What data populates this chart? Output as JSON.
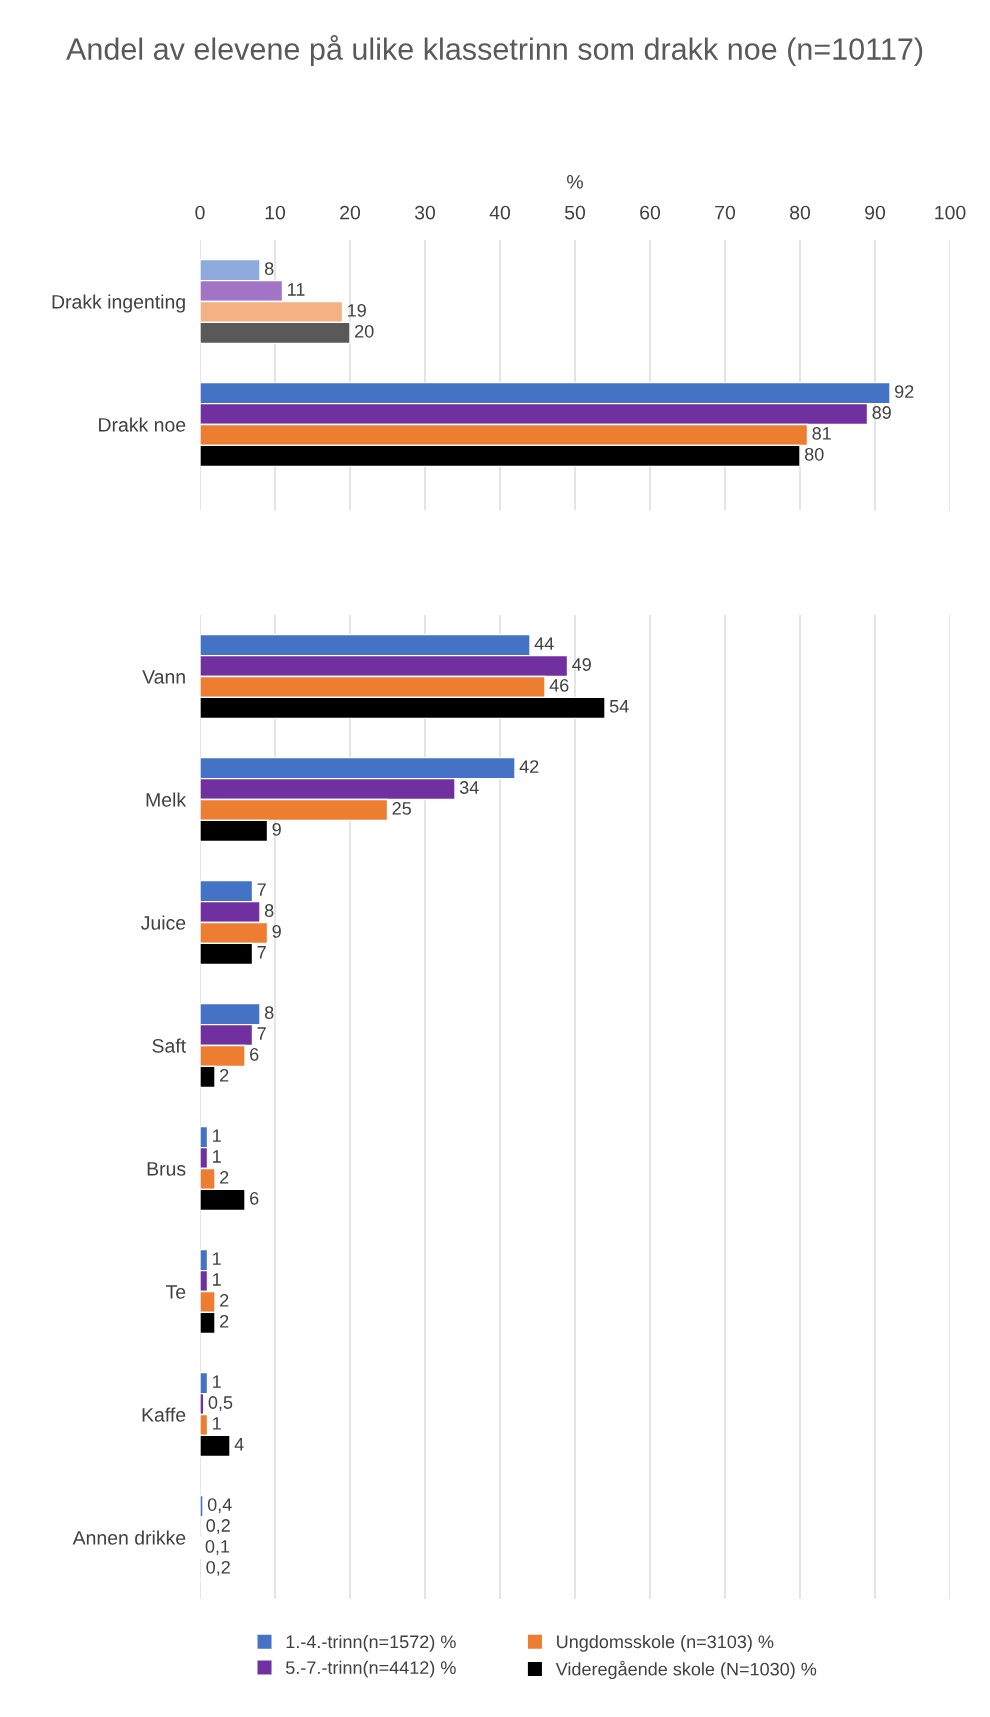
{
  "chart_data": [
    {
      "type": "bar",
      "orientation": "horizontal",
      "title": "Andel av elevene på ulike klassetrinn som drakk noe (n=10117)",
      "xlabel": "%",
      "categories": [
        "Drakk ingenting",
        "Drakk noe"
      ],
      "xlim": [
        0,
        100
      ],
      "xticks": [
        0,
        10,
        20,
        30,
        40,
        50,
        60,
        70,
        80,
        90,
        100
      ],
      "grid": "x",
      "series": [
        {
          "colors": [
            "#8faadc",
            "#4472c4"
          ],
          "values": [
            8,
            92
          ],
          "value_labels": [
            "8",
            "92"
          ]
        },
        {
          "colors": [
            "#a274c6",
            "#7030a0"
          ],
          "values": [
            11,
            89
          ],
          "value_labels": [
            "11",
            "89"
          ]
        },
        {
          "colors": [
            "#f4b183",
            "#ed7d31"
          ],
          "values": [
            19,
            81
          ],
          "value_labels": [
            "19",
            "81"
          ]
        },
        {
          "colors": [
            "#595959",
            "#000000"
          ],
          "values": [
            20,
            80
          ],
          "value_labels": [
            "20",
            "80"
          ]
        }
      ]
    },
    {
      "type": "bar",
      "orientation": "horizontal",
      "categories": [
        "Vann",
        "Melk",
        "Juice",
        "Saft",
        "Brus",
        "Te",
        "Kaffe",
        "Annen drikke"
      ],
      "xlim": [
        0,
        100
      ],
      "xticks": [
        0,
        10,
        20,
        30,
        40,
        50,
        60,
        70,
        80,
        90,
        100
      ],
      "tick_labels": "y",
      "grid": "x",
      "legend": "bottom",
      "series": [
        {
          "name": "1.-4.-trinn(n=1572) %",
          "color": "#4472c4",
          "values": [
            44,
            42,
            7,
            8,
            1,
            1,
            1,
            0.4
          ],
          "value_labels": [
            "44",
            "42",
            "7",
            "8",
            "1",
            "1",
            "1",
            "0,4"
          ]
        },
        {
          "name": "5.-7.-trinn(n=4412) %",
          "color": "#7030a0",
          "values": [
            49,
            34,
            8,
            7,
            1,
            1,
            0.5,
            0.2
          ],
          "value_labels": [
            "49",
            "34",
            "8",
            "7",
            "1",
            "1",
            "0,5",
            "0,2"
          ]
        },
        {
          "name": "Ungdomsskole (n=3103) %",
          "color": "#ed7d31",
          "values": [
            46,
            25,
            9,
            6,
            2,
            2,
            1,
            0.1
          ],
          "value_labels": [
            "46",
            "25",
            "9",
            "6",
            "2",
            "2",
            "1",
            "0,1"
          ]
        },
        {
          "name": "Videregående skole (N=1030) %",
          "color": "#000000",
          "values": [
            54,
            9,
            7,
            2,
            6,
            2,
            4,
            0.2
          ],
          "value_labels": [
            "54",
            "9",
            "7",
            "2",
            "6",
            "2",
            "4",
            "0,2"
          ]
        }
      ]
    }
  ]
}
